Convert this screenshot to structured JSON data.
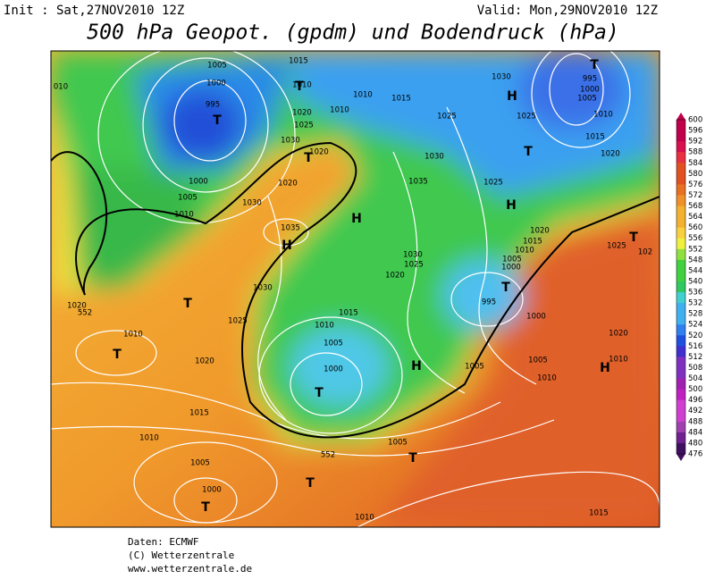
{
  "header": {
    "init": "Init : Sat,27NOV2010 12Z",
    "valid": "Valid: Mon,29NOV2010 12Z",
    "title": "500 hPa Geopot. (gpdm) und Bodendruck (hPa)"
  },
  "isobar_labels": [
    "1005",
    "1015",
    "1000",
    "995",
    "1010",
    "1010",
    "1015",
    "1025",
    "1030",
    "1025",
    "995",
    "1000",
    "1005",
    "1010",
    "1015",
    "1020",
    "010",
    "1020",
    "1025",
    "1010",
    "1030",
    "1020",
    "1030",
    "1035",
    "1025",
    "1000",
    "1005",
    "1010",
    "1020",
    "1030",
    "1035",
    "1020",
    "1015",
    "1010",
    "1005",
    "1000",
    "1025",
    "102",
    "1030",
    "1025",
    "1020",
    "1030",
    "1015",
    "995",
    "1000",
    "1025",
    "1010",
    "1005",
    "1020",
    "1010",
    "1020",
    "1000",
    "1005",
    "1010",
    "1005",
    "1020",
    "1010",
    "1015",
    "1010",
    "1005",
    "1005",
    "1000",
    "1010",
    "1015",
    "552",
    "552"
  ],
  "pressure_centers": [
    "T",
    "H",
    "T",
    "T",
    "T",
    "T",
    "H",
    "H",
    "H",
    "T",
    "T",
    "T",
    "T",
    "H",
    "H",
    "T",
    "T",
    "T",
    "T"
  ],
  "colorbar_labels": [
    600,
    596,
    592,
    588,
    584,
    580,
    576,
    572,
    568,
    564,
    560,
    556,
    552,
    548,
    544,
    540,
    536,
    532,
    528,
    524,
    520,
    516,
    512,
    508,
    504,
    500,
    496,
    492,
    488,
    484,
    480,
    476
  ],
  "footer": [
    "Daten: ECMWF",
    "(C) Wetterzentrale",
    "www.wetterzentrale.de"
  ]
}
